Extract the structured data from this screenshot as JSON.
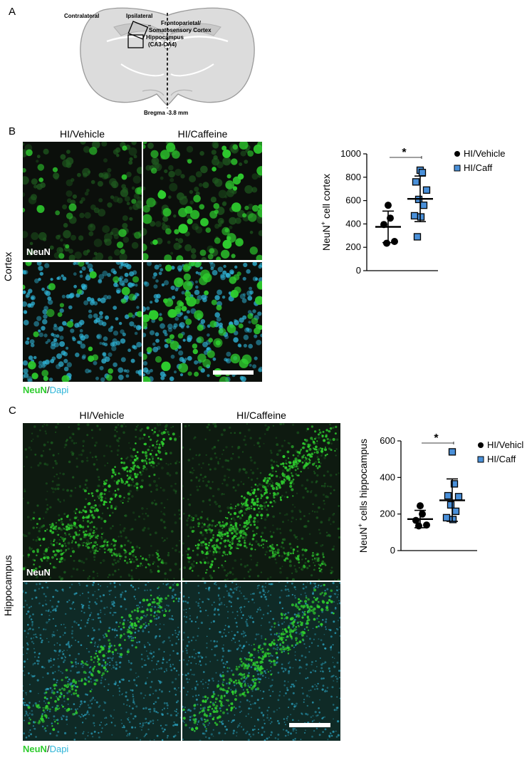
{
  "panel_a": {
    "letter": "A",
    "contralateral": "Contralateral",
    "ipsilateral": "Ipsilateral",
    "region1": "Frontoparietal/",
    "region1b": "Somatosensory Cortex",
    "region2": "Hippocampus",
    "region2b": "(CA3-CA4)",
    "bregma": "Bregma -3.8 mm"
  },
  "panel_b": {
    "letter": "B",
    "col1": "HI/Vehicle",
    "col2": "HI/Caffeine",
    "row_label": "Cortex",
    "tag": "NeuN",
    "caption_neun": "NeuN",
    "caption_sep": "/",
    "caption_dapi": "Dapi"
  },
  "panel_c": {
    "letter": "C",
    "col1": "HI/Vehicle",
    "col2": "HI/Caffeine",
    "row_label": "Hippocampus",
    "tag": "NeuN",
    "caption_neun": "NeuN",
    "caption_sep": "/",
    "caption_dapi": "Dapi"
  },
  "colors": {
    "neun": "#2ecc2e",
    "dapi": "#2fb6d9",
    "caff_marker": "#4a90d9"
  },
  "chart_data": [
    {
      "type": "scatter",
      "ylabel_main": "NeuN",
      "ylabel_sup": "+",
      "ylabel_rest": " cell cortex",
      "ylim": [
        0,
        1000
      ],
      "yticks": [
        "0",
        "200",
        "400",
        "600",
        "800",
        "1000"
      ],
      "significance": "*",
      "legend": [
        "HI/Vehicle",
        "HI/Caff"
      ],
      "series": [
        {
          "name": "HI/Vehicle",
          "mean": 375,
          "sd_low": 240,
          "sd_high": 510,
          "points": [
            560,
            450,
            395,
            250,
            235
          ]
        },
        {
          "name": "HI/Caff",
          "mean": 615,
          "sd_low": 420,
          "sd_high": 810,
          "points": [
            860,
            840,
            760,
            690,
            610,
            560,
            470,
            460,
            290
          ]
        }
      ]
    },
    {
      "type": "scatter",
      "ylabel_main": "NeuN",
      "ylabel_sup": "+",
      "ylabel_rest": " cells hippocampus",
      "ylim": [
        0,
        600
      ],
      "yticks": [
        "0",
        "200",
        "400",
        "600"
      ],
      "significance": "*",
      "legend": [
        "HI/Vehicle",
        "HI/Caff"
      ],
      "series": [
        {
          "name": "HI/Vehicle",
          "mean": 172,
          "sd_low": 125,
          "sd_high": 220,
          "points": [
            245,
            200,
            165,
            140,
            135
          ]
        },
        {
          "name": "HI/Caff",
          "mean": 275,
          "sd_low": 160,
          "sd_high": 392,
          "points": [
            540,
            365,
            300,
            295,
            250,
            215,
            180,
            170
          ]
        }
      ]
    }
  ]
}
